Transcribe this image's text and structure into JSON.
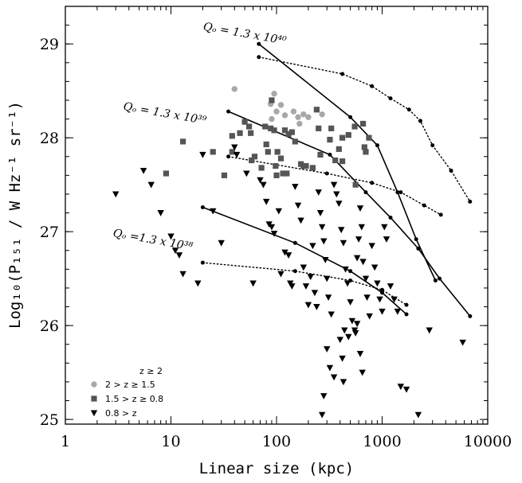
{
  "chart_data": {
    "type": "scatter",
    "xlabel": "Linear size  (kpc)",
    "ylabel": "Log₁₀(P₁₅₁ / W Hz⁻¹ sr⁻¹)",
    "x_scale": "log",
    "xlim": [
      1,
      10000
    ],
    "ylim": [
      24.95,
      29.4
    ],
    "x_ticks": [
      "1",
      "10",
      "100",
      "1000",
      "10000"
    ],
    "y_ticks": [
      "25",
      "26",
      "27",
      "28",
      "29"
    ],
    "legend": {
      "placement": "bottom-left",
      "header": "z ≥ 2",
      "entries": [
        {
          "label": "2 > z ≥ 1.5",
          "marker": "circle",
          "color": "#a8a8a8"
        },
        {
          "label": "1.5 > z ≥ 0.8",
          "marker": "square",
          "color": "#555555"
        },
        {
          "label": "0.8 > z",
          "marker": "triangle",
          "color": "#000000"
        }
      ]
    },
    "annotations": [
      {
        "text": "Qₒ = 1.3 x 10⁴⁰",
        "x": 20,
        "y": 29.15
      },
      {
        "text": "Qₒ = 1.3 x 10³⁹",
        "x": 3.5,
        "y": 28.3
      },
      {
        "text": "Qₒ =1.3 x 10³⁸",
        "x": 2.8,
        "y": 26.95
      }
    ],
    "series": [
      {
        "marker": "circle",
        "color": "#a8a8a8",
        "points": [
          [
            40,
            28.52
          ],
          [
            95,
            28.47
          ],
          [
            88,
            28.36
          ],
          [
            110,
            28.35
          ],
          [
            100,
            28.28
          ],
          [
            90,
            28.2
          ],
          [
            120,
            28.24
          ],
          [
            145,
            28.28
          ],
          [
            160,
            28.22
          ],
          [
            180,
            28.25
          ],
          [
            200,
            28.22
          ],
          [
            165,
            28.15
          ],
          [
            270,
            28.25
          ]
        ]
      },
      {
        "marker": "square",
        "color": "#555555",
        "points": [
          [
            13,
            27.96
          ],
          [
            9,
            27.62
          ],
          [
            25,
            27.85
          ],
          [
            32,
            27.6
          ],
          [
            38,
            28.02
          ],
          [
            38,
            27.85
          ],
          [
            45,
            28.05
          ],
          [
            50,
            28.17
          ],
          [
            55,
            28.12
          ],
          [
            57,
            28.05
          ],
          [
            58,
            27.76
          ],
          [
            62,
            27.8
          ],
          [
            72,
            27.68
          ],
          [
            78,
            28.12
          ],
          [
            80,
            27.93
          ],
          [
            83,
            27.85
          ],
          [
            88,
            28.1
          ],
          [
            90,
            28.4
          ],
          [
            95,
            28.08
          ],
          [
            98,
            27.7
          ],
          [
            100,
            27.6
          ],
          [
            102,
            27.85
          ],
          [
            110,
            27.78
          ],
          [
            115,
            27.62
          ],
          [
            120,
            28.08
          ],
          [
            125,
            27.62
          ],
          [
            130,
            28.04
          ],
          [
            140,
            28.06
          ],
          [
            150,
            27.96
          ],
          [
            170,
            27.72
          ],
          [
            180,
            27.7
          ],
          [
            190,
            27.7
          ],
          [
            220,
            27.68
          ],
          [
            240,
            28.3
          ],
          [
            250,
            28.1
          ],
          [
            260,
            27.82
          ],
          [
            320,
            27.98
          ],
          [
            330,
            28.1
          ],
          [
            360,
            27.76
          ],
          [
            390,
            27.88
          ],
          [
            420,
            28.0
          ],
          [
            480,
            28.03
          ],
          [
            550,
            28.12
          ],
          [
            660,
            28.15
          ],
          [
            680,
            27.9
          ],
          [
            700,
            27.85
          ],
          [
            750,
            28.0
          ],
          [
            420,
            27.75
          ],
          [
            560,
            27.5
          ]
        ]
      },
      {
        "marker": "triangle",
        "color": "#000000",
        "points": [
          [
            3,
            27.4
          ],
          [
            5.5,
            27.65
          ],
          [
            6.5,
            27.5
          ],
          [
            8,
            27.2
          ],
          [
            10,
            26.95
          ],
          [
            11,
            26.8
          ],
          [
            12,
            26.75
          ],
          [
            13,
            26.55
          ],
          [
            18,
            26.45
          ],
          [
            20,
            27.82
          ],
          [
            25,
            27.22
          ],
          [
            30,
            26.88
          ],
          [
            40,
            27.9
          ],
          [
            42,
            27.82
          ],
          [
            52,
            27.62
          ],
          [
            60,
            26.45
          ],
          [
            70,
            27.55
          ],
          [
            75,
            27.5
          ],
          [
            80,
            27.32
          ],
          [
            85,
            27.08
          ],
          [
            90,
            27.05
          ],
          [
            95,
            26.98
          ],
          [
            105,
            27.22
          ],
          [
            110,
            26.55
          ],
          [
            120,
            26.78
          ],
          [
            130,
            26.75
          ],
          [
            135,
            26.45
          ],
          [
            140,
            26.42
          ],
          [
            150,
            27.48
          ],
          [
            160,
            27.28
          ],
          [
            170,
            27.12
          ],
          [
            180,
            26.62
          ],
          [
            190,
            26.42
          ],
          [
            200,
            26.22
          ],
          [
            210,
            26.52
          ],
          [
            220,
            26.85
          ],
          [
            230,
            26.35
          ],
          [
            240,
            26.2
          ],
          [
            250,
            27.42
          ],
          [
            260,
            27.2
          ],
          [
            270,
            27.05
          ],
          [
            280,
            26.9
          ],
          [
            290,
            26.7
          ],
          [
            300,
            26.5
          ],
          [
            310,
            26.3
          ],
          [
            330,
            26.12
          ],
          [
            350,
            27.5
          ],
          [
            370,
            27.4
          ],
          [
            390,
            27.3
          ],
          [
            410,
            27.02
          ],
          [
            430,
            26.88
          ],
          [
            450,
            26.6
          ],
          [
            470,
            26.45
          ],
          [
            500,
            26.25
          ],
          [
            520,
            26.05
          ],
          [
            550,
            25.95
          ],
          [
            580,
            26.72
          ],
          [
            600,
            26.92
          ],
          [
            620,
            27.25
          ],
          [
            640,
            27.05
          ],
          [
            660,
            26.68
          ],
          [
            700,
            26.5
          ],
          [
            720,
            26.3
          ],
          [
            760,
            26.1
          ],
          [
            800,
            26.85
          ],
          [
            850,
            26.62
          ],
          [
            900,
            26.45
          ],
          [
            950,
            26.28
          ],
          [
            1000,
            26.15
          ],
          [
            1050,
            27.05
          ],
          [
            1100,
            26.92
          ],
          [
            1200,
            26.42
          ],
          [
            1300,
            26.28
          ],
          [
            1400,
            26.15
          ],
          [
            1500,
            25.35
          ],
          [
            1700,
            25.32
          ],
          [
            2200,
            25.05
          ],
          [
            2800,
            25.95
          ],
          [
            5800,
            25.82
          ],
          [
            300,
            25.75
          ],
          [
            320,
            25.55
          ],
          [
            350,
            25.45
          ],
          [
            280,
            25.25
          ],
          [
            270,
            25.05
          ],
          [
            400,
            25.85
          ],
          [
            420,
            25.65
          ],
          [
            440,
            25.95
          ],
          [
            480,
            25.88
          ],
          [
            560,
            25.92
          ],
          [
            580,
            26.02
          ],
          [
            620,
            25.7
          ],
          [
            650,
            25.5
          ],
          [
            430,
            25.4
          ]
        ]
      }
    ],
    "model_tracks": [
      {
        "style": "solid",
        "points": [
          [
            68,
            29.0
          ],
          [
            500,
            28.22
          ],
          [
            900,
            27.92
          ],
          [
            1400,
            27.42
          ],
          [
            2100,
            26.92
          ],
          [
            3200,
            26.48
          ]
        ]
      },
      {
        "style": "dotted",
        "points": [
          [
            68,
            28.86
          ],
          [
            420,
            28.68
          ],
          [
            800,
            28.55
          ],
          [
            1200,
            28.42
          ],
          [
            1800,
            28.3
          ],
          [
            2300,
            28.18
          ],
          [
            3000,
            27.92
          ],
          [
            4500,
            27.65
          ],
          [
            6800,
            27.32
          ]
        ]
      },
      {
        "style": "solid",
        "points": [
          [
            35,
            28.28
          ],
          [
            320,
            27.82
          ],
          [
            700,
            27.42
          ],
          [
            1200,
            27.15
          ],
          [
            2200,
            26.82
          ],
          [
            3500,
            26.5
          ],
          [
            6800,
            26.1
          ]
        ]
      },
      {
        "style": "dotted",
        "points": [
          [
            35,
            27.8
          ],
          [
            300,
            27.62
          ],
          [
            800,
            27.52
          ],
          [
            1500,
            27.42
          ],
          [
            2500,
            27.28
          ],
          [
            3600,
            27.18
          ]
        ]
      },
      {
        "style": "solid",
        "points": [
          [
            20,
            27.26
          ],
          [
            150,
            26.88
          ],
          [
            500,
            26.58
          ],
          [
            1000,
            26.35
          ],
          [
            1700,
            26.12
          ]
        ]
      },
      {
        "style": "dotted",
        "points": [
          [
            20,
            26.67
          ],
          [
            150,
            26.58
          ],
          [
            500,
            26.48
          ],
          [
            1000,
            26.38
          ],
          [
            1700,
            26.22
          ]
        ]
      }
    ]
  }
}
